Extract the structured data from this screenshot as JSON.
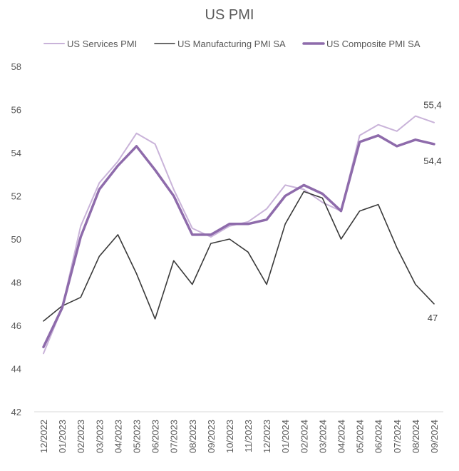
{
  "chart_data": {
    "type": "line",
    "title": "US PMI",
    "xlabel": "",
    "ylabel": "",
    "ylim": [
      42,
      58
    ],
    "yticks": [
      42,
      44,
      46,
      48,
      50,
      52,
      54,
      56,
      58
    ],
    "grid": false,
    "legend_position": "top",
    "categories": [
      "12/2022",
      "01/2023",
      "02/2023",
      "03/2023",
      "04/2023",
      "05/2023",
      "06/2023",
      "07/2023",
      "08/2023",
      "09/2023",
      "10/2023",
      "11/2023",
      "12/2023",
      "01/2024",
      "02/2024",
      "03/2024",
      "04/2024",
      "05/2024",
      "06/2024",
      "07/2024",
      "08/2024",
      "09/2024"
    ],
    "series": [
      {
        "name": "US Services PMI",
        "color": "#c9b3d9",
        "width": 2,
        "values": [
          44.7,
          46.8,
          50.6,
          52.6,
          53.6,
          54.9,
          54.4,
          52.3,
          50.5,
          50.1,
          50.6,
          50.8,
          51.4,
          52.5,
          52.3,
          51.7,
          51.3,
          54.8,
          55.3,
          55.0,
          55.7,
          55.4
        ],
        "end_label": "55,4"
      },
      {
        "name": "US Manufacturing PMI SA",
        "color": "#3a3a3a",
        "width": 1.6,
        "values": [
          46.2,
          46.9,
          47.3,
          49.2,
          50.2,
          48.4,
          46.3,
          49.0,
          47.9,
          49.8,
          50.0,
          49.4,
          47.9,
          50.7,
          52.2,
          51.9,
          50.0,
          51.3,
          51.6,
          49.6,
          47.9,
          47.0
        ],
        "end_label": "47"
      },
      {
        "name": "US Composite PMI SA",
        "color": "#8e6bab",
        "width": 3.5,
        "values": [
          45.0,
          46.8,
          50.1,
          52.3,
          53.4,
          54.3,
          53.2,
          52.0,
          50.2,
          50.2,
          50.7,
          50.7,
          50.9,
          52.0,
          52.5,
          52.1,
          51.3,
          54.5,
          54.8,
          54.3,
          54.6,
          54.4
        ],
        "end_label": "54,4"
      }
    ]
  }
}
